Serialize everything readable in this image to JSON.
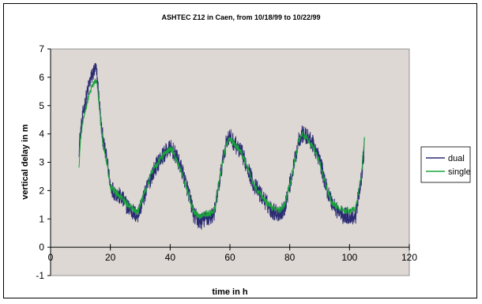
{
  "chart_data": {
    "type": "line",
    "title": "ASHTEC Z12 in Caen, from 10/18/99 to 10/22/99",
    "xlabel": "time in h",
    "ylabel": "vertical delay in m",
    "xlim": [
      0,
      120
    ],
    "ylim": [
      -1,
      7
    ],
    "xticks": [
      0,
      20,
      40,
      60,
      80,
      100,
      120
    ],
    "yticks": [
      -1,
      0,
      1,
      2,
      3,
      4,
      5,
      6,
      7
    ],
    "grid": false,
    "legend_position": "right",
    "series": [
      {
        "name": "dual",
        "color": "#2b2b74",
        "noise": 0.32,
        "x": [
          9.5,
          10,
          11,
          12,
          13,
          14,
          15,
          15.5,
          16,
          17,
          18,
          19,
          20,
          21,
          22,
          24,
          26,
          28,
          29,
          30,
          32,
          34,
          36,
          38,
          40,
          41,
          42,
          44,
          46,
          48,
          50,
          52,
          54,
          55,
          56,
          58,
          59,
          60,
          62,
          64,
          66,
          68,
          70,
          72,
          74,
          76,
          78,
          80,
          82,
          83,
          84,
          86,
          88,
          90,
          92,
          94,
          96,
          98,
          100,
          102,
          104,
          105
        ],
        "y": [
          3.5,
          4.0,
          4.8,
          5.3,
          5.8,
          6.1,
          6.3,
          6.1,
          5.5,
          4.2,
          3.5,
          3.0,
          2.2,
          2.0,
          1.9,
          1.7,
          1.4,
          1.2,
          1.1,
          1.4,
          2.0,
          2.6,
          3.0,
          3.3,
          3.5,
          3.4,
          3.2,
          2.7,
          2.0,
          1.1,
          0.9,
          1.0,
          1.1,
          1.3,
          2.0,
          3.3,
          3.8,
          3.9,
          3.6,
          3.3,
          2.8,
          2.2,
          1.9,
          1.6,
          1.3,
          1.2,
          1.3,
          2.2,
          3.2,
          3.8,
          4.0,
          3.9,
          3.6,
          3.1,
          2.2,
          1.6,
          1.3,
          1.1,
          1.1,
          1.1,
          2.5,
          3.6
        ]
      },
      {
        "name": "single",
        "color": "#19a53a",
        "noise": 0.12,
        "x": [
          9.5,
          10,
          11,
          12,
          13,
          14,
          15,
          15.5,
          16,
          17,
          18,
          19,
          20,
          21,
          22,
          24,
          26,
          28,
          29,
          30,
          32,
          34,
          36,
          38,
          40,
          41,
          42,
          44,
          46,
          48,
          50,
          52,
          54,
          55,
          56,
          58,
          59,
          60,
          62,
          64,
          66,
          68,
          70,
          72,
          74,
          76,
          78,
          80,
          82,
          83,
          84,
          86,
          88,
          90,
          92,
          94,
          96,
          98,
          100,
          102,
          104,
          105
        ],
        "y": [
          2.8,
          3.8,
          4.6,
          5.0,
          5.4,
          5.7,
          5.9,
          5.8,
          5.3,
          4.1,
          3.4,
          2.9,
          2.1,
          2.0,
          1.9,
          1.7,
          1.5,
          1.3,
          1.2,
          1.5,
          2.1,
          2.7,
          3.0,
          3.3,
          3.5,
          3.4,
          3.1,
          2.6,
          1.9,
          1.2,
          1.1,
          1.2,
          1.2,
          1.4,
          2.1,
          3.3,
          3.7,
          3.8,
          3.6,
          3.3,
          2.8,
          2.2,
          1.9,
          1.6,
          1.4,
          1.3,
          1.4,
          2.2,
          3.2,
          3.8,
          4.0,
          3.8,
          3.5,
          3.0,
          2.2,
          1.6,
          1.4,
          1.3,
          1.3,
          1.3,
          2.6,
          3.8
        ]
      }
    ]
  }
}
